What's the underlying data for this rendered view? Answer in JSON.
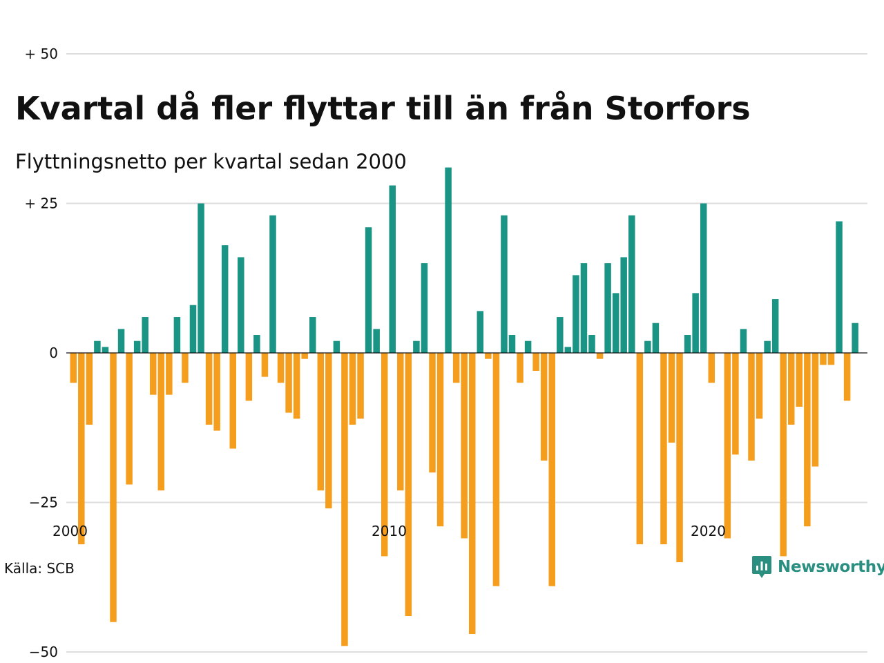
{
  "title": "Kvartal då fler flyttar till än från Storfors",
  "subtitle": "Flyttningsnetto per kvartal sedan 2000",
  "source": "Källa: SCB",
  "brand": "Newsworthy",
  "colors": {
    "positive": "#1a9485",
    "negative": "#f59e1d",
    "grid": "#dddddd",
    "brand": "#2a8f80"
  },
  "chart_data": {
    "type": "bar",
    "title": "Kvartal då fler flyttar till än från Storfors",
    "subtitle": "Flyttningsnetto per kvartal sedan 2000",
    "xlabel": "",
    "ylabel": "",
    "ylim": [
      -50,
      50
    ],
    "y_ticks": [
      {
        "value": 50,
        "label": "+ 50"
      },
      {
        "value": 25,
        "label": "+ 25"
      },
      {
        "value": 0,
        "label": "0"
      },
      {
        "value": -25,
        "label": "−25"
      },
      {
        "value": -50,
        "label": "−50"
      }
    ],
    "x_ticks": [
      {
        "value": 2000,
        "label": "2000"
      },
      {
        "value": 2010,
        "label": "2010"
      },
      {
        "value": 2020,
        "label": "2020"
      }
    ],
    "start_year": 2000,
    "grid": true,
    "values": [
      -5,
      -32,
      -12,
      2,
      1,
      -45,
      4,
      -22,
      2,
      6,
      -7,
      -23,
      -7,
      6,
      -5,
      8,
      25,
      -12,
      -13,
      18,
      -16,
      16,
      -8,
      3,
      -4,
      23,
      -5,
      -10,
      -11,
      -1,
      6,
      -23,
      -26,
      2,
      -49,
      -12,
      -11,
      21,
      4,
      -34,
      28,
      -23,
      -44,
      2,
      15,
      -20,
      -29,
      31,
      -5,
      -31,
      -47,
      7,
      -1,
      -39,
      23,
      3,
      -5,
      2,
      -3,
      -18,
      -39,
      6,
      1,
      13,
      15,
      3,
      -1,
      15,
      10,
      16,
      23,
      -32,
      2,
      5,
      -32,
      -15,
      -35,
      3,
      10,
      25,
      -5,
      0,
      -31,
      -17,
      4,
      -18,
      -11,
      2,
      9,
      -34,
      -12,
      -9,
      -29,
      -19,
      -2,
      -2,
      22,
      -8,
      5
    ]
  }
}
